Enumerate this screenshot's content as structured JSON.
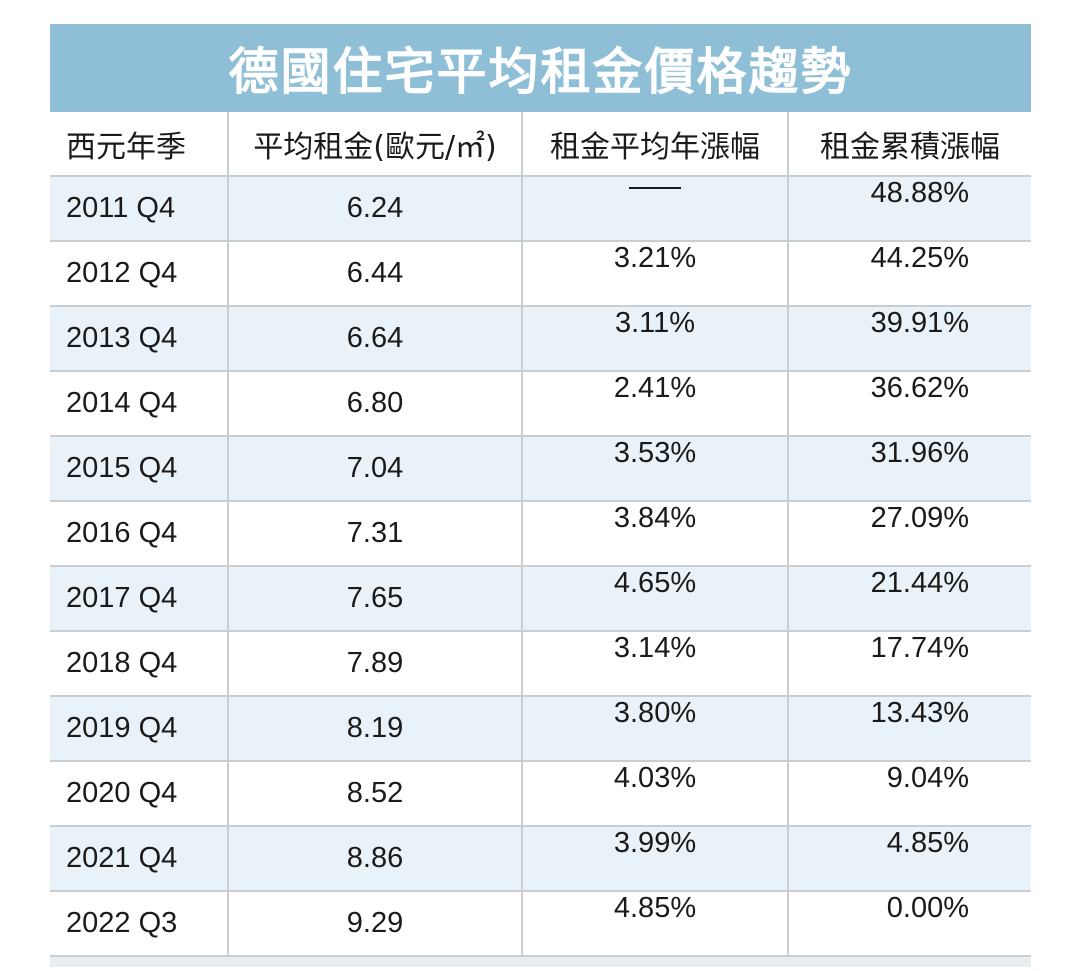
{
  "chart_data": {
    "type": "table",
    "title": "德國住宅平均租金價格趨勢",
    "columns": [
      "西元年季",
      "平均租金(歐元/㎡)",
      "租金平均年漲幅",
      "租金累積漲幅"
    ],
    "rows": [
      {
        "period": "2011 Q4",
        "rent": "6.24",
        "yoy": "—",
        "cumulative": "48.88%"
      },
      {
        "period": "2012 Q4",
        "rent": "6.44",
        "yoy": "3.21%",
        "cumulative": "44.25%"
      },
      {
        "period": "2013 Q4",
        "rent": "6.64",
        "yoy": "3.11%",
        "cumulative": "39.91%"
      },
      {
        "period": "2014 Q4",
        "rent": "6.80",
        "yoy": "2.41%",
        "cumulative": "36.62%"
      },
      {
        "period": "2015 Q4",
        "rent": "7.04",
        "yoy": "3.53%",
        "cumulative": "31.96%"
      },
      {
        "period": "2016 Q4",
        "rent": "7.31",
        "yoy": "3.84%",
        "cumulative": "27.09%"
      },
      {
        "period": "2017 Q4",
        "rent": "7.65",
        "yoy": "4.65%",
        "cumulative": "21.44%"
      },
      {
        "period": "2018 Q4",
        "rent": "7.89",
        "yoy": "3.14%",
        "cumulative": "17.74%"
      },
      {
        "period": "2019 Q4",
        "rent": "8.19",
        "yoy": "3.80%",
        "cumulative": "13.43%"
      },
      {
        "period": "2020 Q4",
        "rent": "8.52",
        "yoy": "4.03%",
        "cumulative": "9.04%"
      },
      {
        "period": "2021 Q4",
        "rent": "8.86",
        "yoy": "3.99%",
        "cumulative": "4.85%"
      },
      {
        "period": "2022 Q3",
        "rent": "9.29",
        "yoy": "4.85%",
        "cumulative": "0.00%"
      }
    ],
    "colors": {
      "title_bg": "#8fbfd6",
      "title_text": "#ffffff",
      "row_stripe": "#e9f2f8",
      "grid": "#c9ced3"
    }
  }
}
